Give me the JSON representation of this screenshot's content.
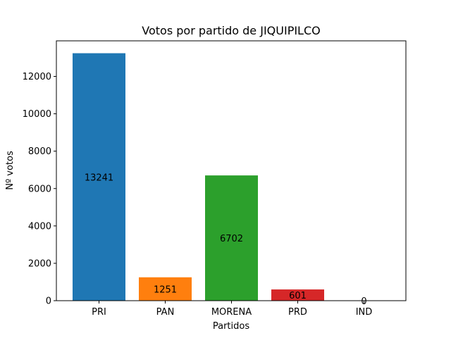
{
  "chart_data": {
    "type": "bar",
    "title": "Votos por partido de JIQUIPILCO",
    "xlabel": "Partidos",
    "ylabel": "Nº votos",
    "categories": [
      "PRI",
      "PAN",
      "MORENA",
      "PRD",
      "IND"
    ],
    "values": [
      13241,
      1251,
      6702,
      601,
      0
    ],
    "data_labels": [
      "13241",
      "1251",
      "6702",
      "601",
      "0"
    ],
    "colors": [
      "#1f77b4",
      "#ff7f0e",
      "#2ca02c",
      "#d62728",
      "#9467bd"
    ],
    "ylim": [
      0,
      13903
    ],
    "yticks": [
      0,
      2000,
      4000,
      6000,
      8000,
      10000,
      12000
    ],
    "ytick_labels": [
      "0",
      "2000",
      "4000",
      "6000",
      "8000",
      "10000",
      "12000"
    ],
    "grid": false,
    "legend": "none"
  }
}
